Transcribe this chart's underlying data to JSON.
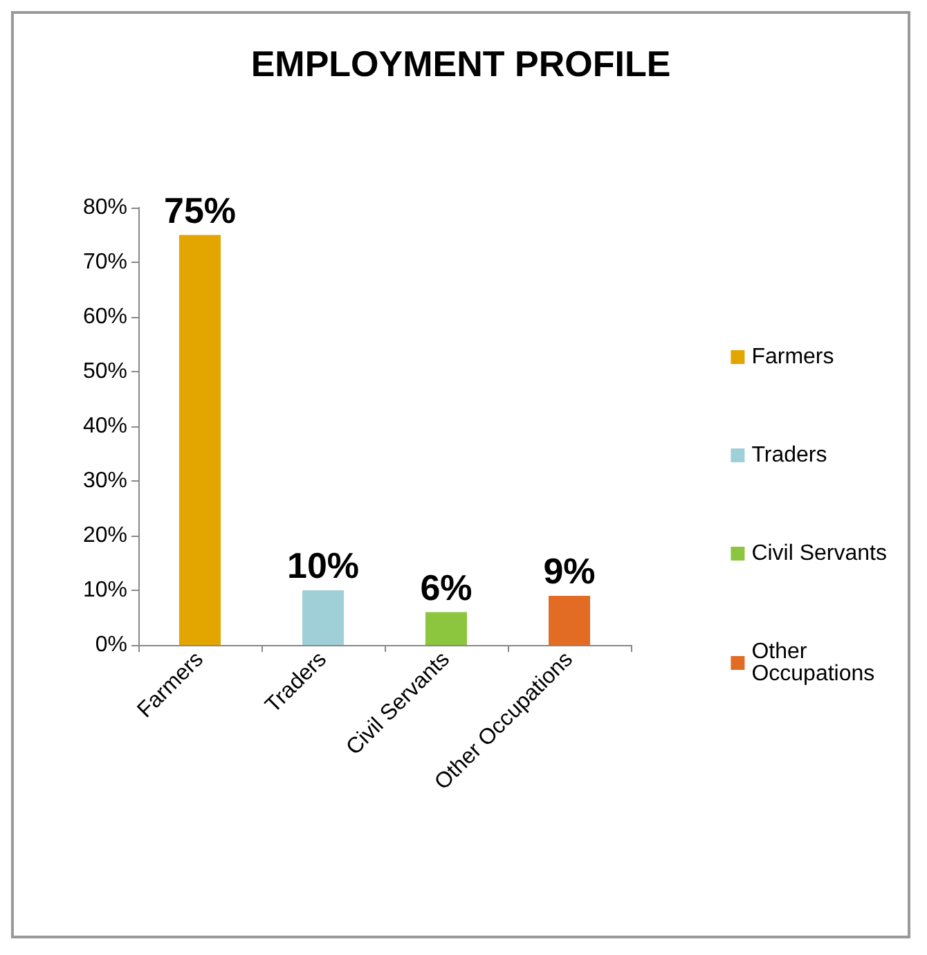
{
  "chart_data": {
    "type": "bar",
    "title": "EMPLOYMENT PROFILE",
    "categories": [
      "Farmers",
      "Traders",
      "Civil Servants",
      "Other Occupations"
    ],
    "series": [
      {
        "name": "Farmers",
        "color": "#e3a600",
        "values": [
          75,
          null,
          null,
          null
        ],
        "value_labels": [
          "75%",
          null,
          null,
          null
        ]
      },
      {
        "name": "Traders",
        "color": "#9fd0d8",
        "values": [
          null,
          10,
          null,
          null
        ],
        "value_labels": [
          null,
          "10%",
          null,
          null
        ]
      },
      {
        "name": "Civil Servants",
        "color": "#8cc63e",
        "values": [
          null,
          null,
          6,
          null
        ],
        "value_labels": [
          null,
          null,
          "6%",
          null
        ]
      },
      {
        "name": "Other Occupations",
        "color": "#e36c25",
        "values": [
          null,
          null,
          null,
          9
        ],
        "value_labels": [
          null,
          null,
          null,
          "9%"
        ]
      }
    ],
    "ylim": [
      0,
      80
    ],
    "yticks": [
      {
        "value": 0,
        "label": "0%"
      },
      {
        "value": 10,
        "label": "10%"
      },
      {
        "value": 20,
        "label": "20%"
      },
      {
        "value": 30,
        "label": "30%"
      },
      {
        "value": 40,
        "label": "40%"
      },
      {
        "value": 50,
        "label": "50%"
      },
      {
        "value": 60,
        "label": "60%"
      },
      {
        "value": 70,
        "label": "70%"
      },
      {
        "value": 80,
        "label": "80%"
      }
    ],
    "grid": false,
    "legend": "right"
  }
}
